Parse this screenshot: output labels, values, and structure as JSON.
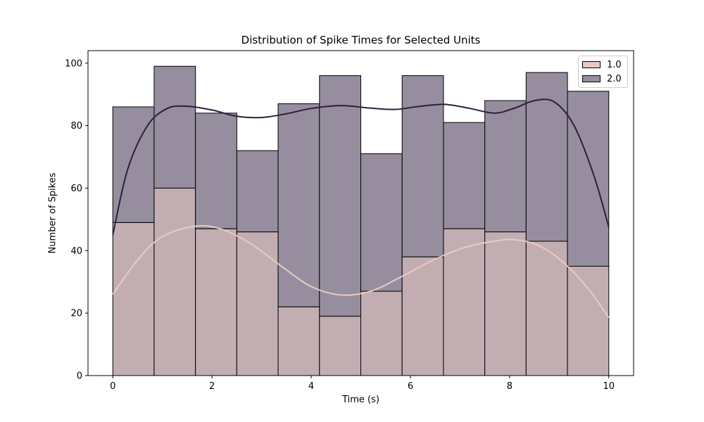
{
  "chart_data": {
    "type": "histogram",
    "title": "Distribution of Spike Times for Selected Units",
    "xlabel": "Time (s)",
    "ylabel": "Number of Spikes",
    "xlim": [
      -0.5,
      10.5
    ],
    "ylim": [
      0,
      104
    ],
    "xticks": [
      0,
      2,
      4,
      6,
      8,
      10
    ],
    "yticks": [
      0,
      20,
      40,
      60,
      80,
      100
    ],
    "bin_edges": [
      0,
      0.833,
      1.667,
      2.5,
      3.333,
      4.167,
      5.0,
      5.833,
      6.667,
      7.5,
      8.333,
      9.167,
      10.0
    ],
    "stacked": true,
    "legend_position": "top-right",
    "series": [
      {
        "name": "1.0",
        "color": "#e8c9c1",
        "kde_color": "#ebcac1",
        "fill_color": "#c2aeb2",
        "values": [
          49,
          60,
          47,
          46,
          22,
          19,
          27,
          38,
          47,
          46,
          43,
          35
        ],
        "kde": [
          [
            0,
            26
          ],
          [
            0.5,
            37
          ],
          [
            1.0,
            44.5
          ],
          [
            1.67,
            47.8
          ],
          [
            2.2,
            46.8
          ],
          [
            2.8,
            42
          ],
          [
            3.4,
            35
          ],
          [
            4.0,
            28.5
          ],
          [
            4.6,
            25.8
          ],
          [
            5.2,
            27
          ],
          [
            5.8,
            31.5
          ],
          [
            6.4,
            36.5
          ],
          [
            7.0,
            40.5
          ],
          [
            7.6,
            42.8
          ],
          [
            8.1,
            43.5
          ],
          [
            8.6,
            41.5
          ],
          [
            9.1,
            36
          ],
          [
            9.6,
            27.5
          ],
          [
            10.0,
            18.5
          ]
        ]
      },
      {
        "name": "2.0",
        "color": "#2d1e3e",
        "kde_color": "#2d1e3e",
        "fill_color": "#968e9e",
        "values": [
          37,
          39,
          37,
          26,
          65,
          77,
          44,
          58,
          34,
          42,
          54,
          56
        ],
        "kde": [
          [
            0,
            45
          ],
          [
            0.3,
            66
          ],
          [
            0.7,
            80
          ],
          [
            1.1,
            85.5
          ],
          [
            1.5,
            86.2
          ],
          [
            2.0,
            85
          ],
          [
            2.5,
            83
          ],
          [
            3.0,
            82.6
          ],
          [
            3.5,
            83.8
          ],
          [
            4.0,
            85.5
          ],
          [
            4.6,
            86.4
          ],
          [
            5.2,
            85.6
          ],
          [
            5.7,
            85.2
          ],
          [
            6.2,
            86.2
          ],
          [
            6.7,
            86.8
          ],
          [
            7.2,
            85.5
          ],
          [
            7.7,
            84
          ],
          [
            8.1,
            85.6
          ],
          [
            8.5,
            88
          ],
          [
            8.9,
            87.6
          ],
          [
            9.3,
            80
          ],
          [
            9.7,
            64
          ],
          [
            10.0,
            47.5
          ]
        ]
      }
    ]
  }
}
